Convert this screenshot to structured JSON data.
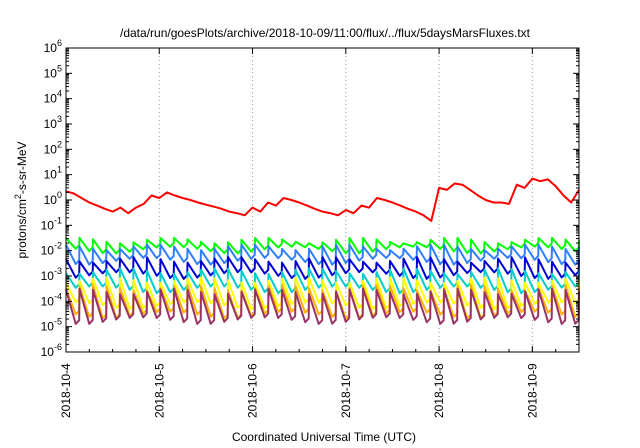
{
  "chart_data": {
    "type": "line",
    "title": "/data/run/goesPlots/archive/2018-10-09/11:00/flux/../flux/5daysMarsFluxes.txt",
    "xlabel": "Coordinated Universal Time (UTC)",
    "ylabel": {
      "prefix": "protons/cm",
      "superscript": "2",
      "suffix": "-s-sr-MeV"
    },
    "x_start": "2018-10-04",
    "x_end": "2018-10-09 12:00",
    "x_ticks": [
      "2018-10-4",
      "2018-10-5",
      "2018-10-6",
      "2018-10-7",
      "2018-10-8",
      "2018-10-9"
    ],
    "y_scale": "log",
    "ylim": [
      1e-06,
      1000000
    ],
    "y_ticks": [
      {
        "base": "10",
        "exp": "-6"
      },
      {
        "base": "10",
        "exp": "-5"
      },
      {
        "base": "10",
        "exp": "-4"
      },
      {
        "base": "10",
        "exp": "-3"
      },
      {
        "base": "10",
        "exp": "-2"
      },
      {
        "base": "10",
        "exp": "-1"
      },
      {
        "base": "10",
        "exp": "0"
      },
      {
        "base": "10",
        "exp": "1"
      },
      {
        "base": "10",
        "exp": "2"
      },
      {
        "base": "10",
        "exp": "3"
      },
      {
        "base": "10",
        "exp": "4"
      },
      {
        "base": "10",
        "exp": "5"
      },
      {
        "base": "10",
        "exp": "6"
      }
    ],
    "grid": "vertical dotted",
    "legend": "none",
    "series": [
      {
        "color": "#ff0000",
        "x": [
          "2018-10-04 00:00",
          "2018-10-04 02:00",
          "2018-10-04 04:00",
          "2018-10-04 06:00",
          "2018-10-04 08:00",
          "2018-10-04 10:00",
          "2018-10-04 12:00",
          "2018-10-04 14:00",
          "2018-10-04 16:00",
          "2018-10-04 18:00",
          "2018-10-04 20:00",
          "2018-10-04 22:00",
          "2018-10-05 00:00",
          "2018-10-05 02:00",
          "2018-10-05 04:00",
          "2018-10-05 06:00",
          "2018-10-05 08:00",
          "2018-10-05 10:00",
          "2018-10-05 12:00",
          "2018-10-05 14:00",
          "2018-10-05 16:00",
          "2018-10-05 18:00",
          "2018-10-05 20:00",
          "2018-10-05 22:00",
          "2018-10-06 00:00",
          "2018-10-06 02:00",
          "2018-10-06 04:00",
          "2018-10-06 06:00",
          "2018-10-06 08:00",
          "2018-10-06 10:00",
          "2018-10-06 12:00",
          "2018-10-06 14:00",
          "2018-10-06 16:00",
          "2018-10-06 18:00",
          "2018-10-06 20:00",
          "2018-10-06 22:00",
          "2018-10-07 00:00",
          "2018-10-07 02:00",
          "2018-10-07 04:00",
          "2018-10-07 06:00",
          "2018-10-07 08:00",
          "2018-10-07 10:00",
          "2018-10-07 12:00",
          "2018-10-07 14:00",
          "2018-10-07 16:00",
          "2018-10-07 18:00",
          "2018-10-07 20:00",
          "2018-10-07 22:00",
          "2018-10-08 00:00",
          "2018-10-08 02:00",
          "2018-10-08 04:00",
          "2018-10-08 06:00",
          "2018-10-08 08:00",
          "2018-10-08 10:00",
          "2018-10-08 12:00",
          "2018-10-08 14:00",
          "2018-10-08 16:00",
          "2018-10-08 18:00",
          "2018-10-08 20:00",
          "2018-10-08 22:00",
          "2018-10-09 00:00",
          "2018-10-09 02:00",
          "2018-10-09 04:00",
          "2018-10-09 06:00",
          "2018-10-09 08:00",
          "2018-10-09 10:00",
          "2018-10-09 12:00"
        ],
        "values": [
          2.2,
          1.8,
          1.2,
          0.8,
          0.6,
          0.45,
          0.35,
          0.5,
          0.3,
          0.5,
          0.7,
          1.5,
          1.2,
          2.0,
          1.5,
          1.2,
          1.0,
          0.8,
          0.65,
          0.55,
          0.45,
          0.35,
          0.3,
          0.25,
          0.5,
          0.35,
          0.8,
          0.6,
          1.2,
          1.0,
          0.8,
          0.6,
          0.45,
          0.35,
          0.3,
          0.25,
          0.4,
          0.3,
          0.6,
          0.5,
          1.2,
          1.0,
          0.8,
          0.6,
          0.45,
          0.35,
          0.25,
          0.15,
          3.0,
          2.5,
          4.5,
          4.0,
          2.5,
          1.5,
          1.0,
          0.8,
          0.8,
          0.7,
          4.0,
          3.0,
          7.0,
          5.5,
          6.5,
          3.5,
          1.5,
          0.8,
          2.5
        ]
      },
      {
        "color": "#00ff00",
        "level": 0.026,
        "dip": 0.011
      },
      {
        "color": "#2f7fff",
        "level": 0.014,
        "dip": 0.004
      },
      {
        "color": "#0000d0",
        "level": 0.0045,
        "dip": 0.0011
      },
      {
        "color": "#00cccc",
        "level": 0.0016,
        "dip": 0.0003
      },
      {
        "color": "#ffff00",
        "level": 0.0007,
        "dip": 7e-05
      },
      {
        "color": "#ffb000",
        "level": 0.00035,
        "dip": 3e-05
      },
      {
        "color": "#993366",
        "level": 0.00025,
        "dip": 1.8e-05
      }
    ]
  }
}
